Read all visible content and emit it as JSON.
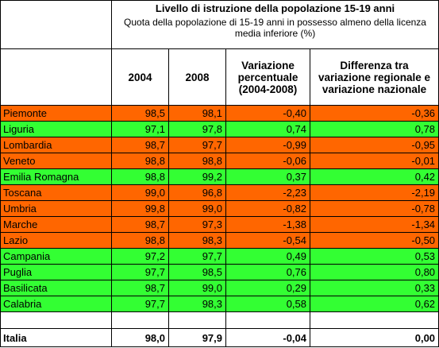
{
  "header": {
    "title": "Livello di istruzione della popolazione 15-19 anni",
    "subtitle": "Quota della popolazione di 15-19 anni in possesso almeno della licenza media inferiore (%)"
  },
  "columns": {
    "y2004": "2004",
    "y2008": "2008",
    "var_pct": "Variazione percentuale (2004-2008)",
    "diff": "Differenza tra variazione regionale e variazione nazionale"
  },
  "colors": {
    "below_national": "#ff6600",
    "above_national": "#33ff33"
  },
  "rows": [
    {
      "region": "Piemonte",
      "y2004": "98,5",
      "y2008": "98,1",
      "var": "-0,40",
      "diff": "-0,36",
      "status": "orange"
    },
    {
      "region": "Liguria",
      "y2004": "97,1",
      "y2008": "97,8",
      "var": "0,74",
      "diff": "0,78",
      "status": "green"
    },
    {
      "region": "Lombardia",
      "y2004": "98,7",
      "y2008": "97,7",
      "var": "-0,99",
      "diff": "-0,95",
      "status": "orange"
    },
    {
      "region": "Veneto",
      "y2004": "98,8",
      "y2008": "98,8",
      "var": "-0,06",
      "diff": "-0,01",
      "status": "orange"
    },
    {
      "region": "Emilia Romagna",
      "y2004": "98,8",
      "y2008": "99,2",
      "var": "0,37",
      "diff": "0,42",
      "status": "green"
    },
    {
      "region": "Toscana",
      "y2004": "99,0",
      "y2008": "96,8",
      "var": "-2,23",
      "diff": "-2,19",
      "status": "orange"
    },
    {
      "region": "Umbria",
      "y2004": "99,8",
      "y2008": "99,0",
      "var": "-0,82",
      "diff": "-0,78",
      "status": "orange"
    },
    {
      "region": "Marche",
      "y2004": "98,7",
      "y2008": "97,3",
      "var": "-1,38",
      "diff": "-1,34",
      "status": "orange"
    },
    {
      "region": "Lazio",
      "y2004": "98,8",
      "y2008": "98,3",
      "var": "-0,54",
      "diff": "-0,50",
      "status": "orange"
    },
    {
      "region": "Campania",
      "y2004": "97,2",
      "y2008": "97,7",
      "var": "0,49",
      "diff": "0,53",
      "status": "green"
    },
    {
      "region": "Puglia",
      "y2004": "97,7",
      "y2008": "98,5",
      "var": "0,76",
      "diff": "0,80",
      "status": "green"
    },
    {
      "region": "Basilicata",
      "y2004": "98,7",
      "y2008": "99,0",
      "var": "0,29",
      "diff": "0,33",
      "status": "green"
    },
    {
      "region": "Calabria",
      "y2004": "97,7",
      "y2008": "98,3",
      "var": "0,58",
      "diff": "0,62",
      "status": "green"
    }
  ],
  "total": {
    "region": "Italia",
    "y2004": "98,0",
    "y2008": "97,9",
    "var": "-0,04",
    "diff": "0,00"
  }
}
